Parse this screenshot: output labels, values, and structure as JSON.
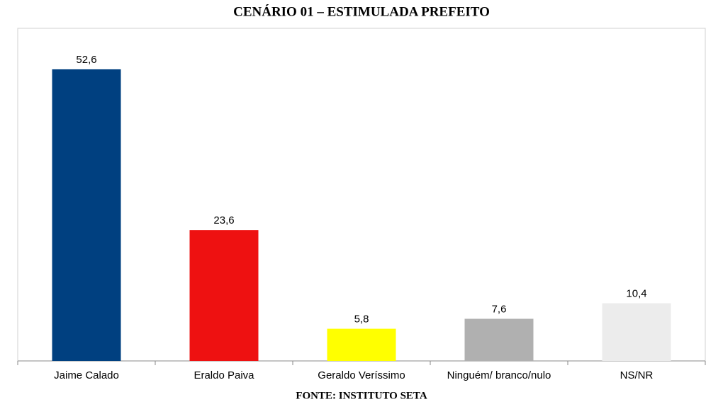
{
  "chart_data": {
    "type": "bar",
    "title": "CENÁRIO 01 – ESTIMULADA PREFEITO",
    "categories": [
      "Jaime Calado",
      "Eraldo Paiva",
      "Geraldo Veríssimo",
      "Ninguém/ branco/nulo",
      "NS/NR"
    ],
    "values": [
      52.6,
      23.6,
      5.8,
      7.6,
      10.4
    ],
    "value_labels": [
      "52,6",
      "23,6",
      "5,8",
      "7,6",
      "10,4"
    ],
    "colors": [
      "#004080",
      "#ee1111",
      "#ffff00",
      "#b0b0b0",
      "#ececec"
    ],
    "ylim": [
      0,
      60
    ],
    "source": "FONTE: INSTITUTO SETA"
  }
}
